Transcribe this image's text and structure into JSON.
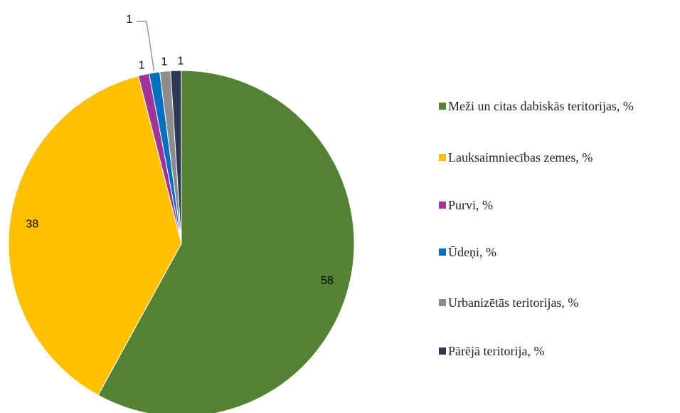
{
  "chart_data": {
    "type": "pie",
    "categories": [
      "Meži un citas dabiskās teritorijas, %",
      "Lauksaimniecības zemes, %",
      "Purvi, %",
      "Ūdeņi, %",
      "Urbanizētās teritorijas, %",
      "Pārējā teritorija, %"
    ],
    "values": [
      58,
      38,
      1,
      1,
      1,
      1
    ],
    "colors": [
      "#548235",
      "#ffc000",
      "#a0339b",
      "#0070c0",
      "#8c8c8c",
      "#2e3a53"
    ],
    "legend": "right"
  }
}
